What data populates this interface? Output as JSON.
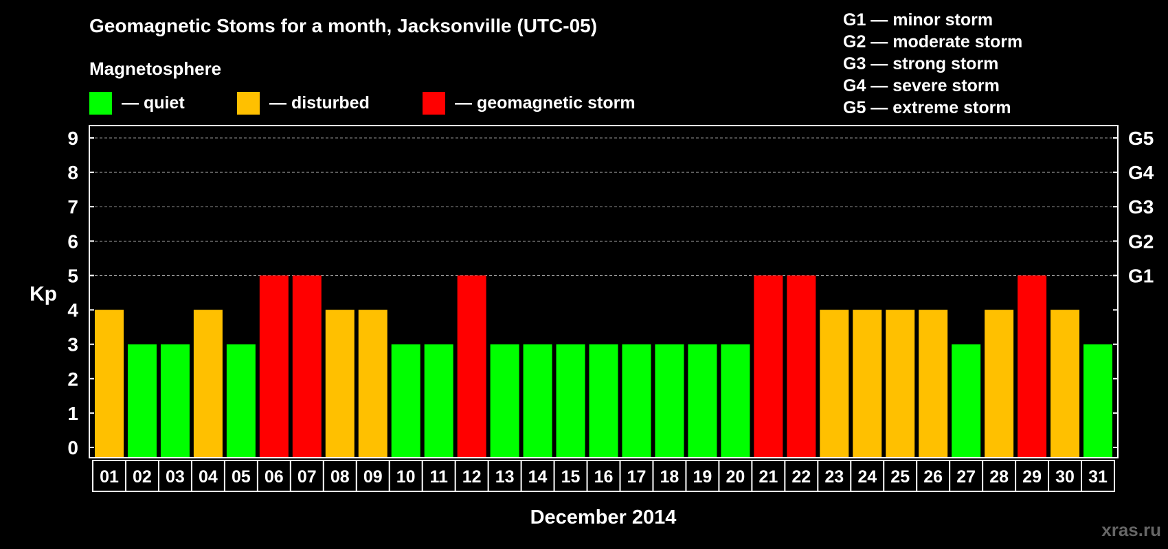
{
  "chart_data": {
    "type": "bar",
    "title": "Geomagnetic Stoms for a month, Jacksonville (UTC-05)",
    "subtitle": "Magnetosphere",
    "legend": [
      {
        "label": "— quiet",
        "color": "#00ff00"
      },
      {
        "label": "— disturbed",
        "color": "#ffc000"
      },
      {
        "label": "— geomagnetic storm",
        "color": "#ff0000"
      }
    ],
    "storm_scale": [
      "G1 — minor storm",
      "G2 — moderate storm",
      "G3 — strong storm",
      "G4 — severe storm",
      "G5 — extreme storm"
    ],
    "right_axis_labels": [
      {
        "value": 5,
        "label": "G1"
      },
      {
        "value": 6,
        "label": "G2"
      },
      {
        "value": 7,
        "label": "G3"
      },
      {
        "value": 8,
        "label": "G4"
      },
      {
        "value": 9,
        "label": "G5"
      }
    ],
    "ylabel": "Kp",
    "xlabel": "December 2014",
    "ylim": [
      0,
      9
    ],
    "yticks": [
      0,
      1,
      2,
      3,
      4,
      5,
      6,
      7,
      8,
      9
    ],
    "grid_lines": [
      5,
      6,
      7,
      8,
      9
    ],
    "categories": [
      "01",
      "02",
      "03",
      "04",
      "05",
      "06",
      "07",
      "08",
      "09",
      "10",
      "11",
      "12",
      "13",
      "14",
      "15",
      "16",
      "17",
      "18",
      "19",
      "20",
      "21",
      "22",
      "23",
      "24",
      "25",
      "26",
      "27",
      "28",
      "29",
      "30",
      "31"
    ],
    "values": [
      4,
      3,
      3,
      4,
      3,
      5,
      5,
      4,
      4,
      3,
      3,
      5,
      3,
      3,
      3,
      3,
      3,
      3,
      3,
      3,
      5,
      5,
      4,
      4,
      4,
      4,
      3,
      4,
      5,
      4,
      3
    ],
    "colors": {
      "quiet": "#00ff00",
      "disturbed": "#ffc000",
      "storm": "#ff0000"
    }
  },
  "watermark": "xras.ru"
}
